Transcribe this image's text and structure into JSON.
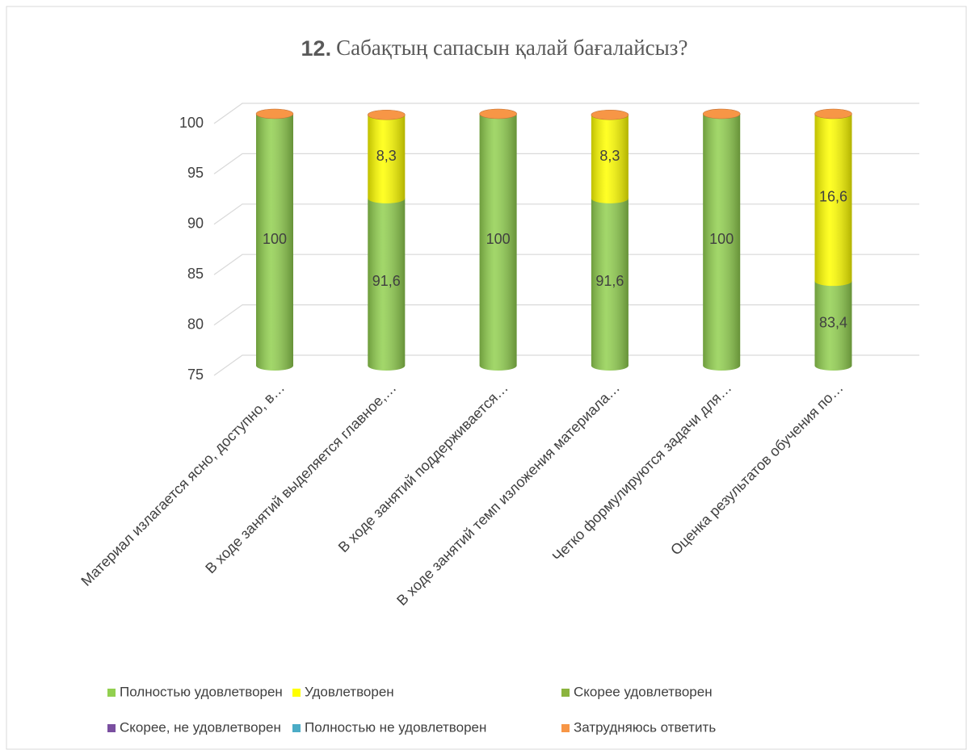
{
  "chart_data": {
    "type": "bar3d_stacked",
    "title_number": "12.",
    "title": "Сабақтың сапасын қалай бағалайсыз?",
    "categories": [
      "Материал излагается ясно, доступно, в…",
      "В ходе занятий выделяется главное,…",
      "В ходе занятий поддерживается…",
      "В ходе занятий темп изложения материала…",
      "Четко формулируются задачи для…",
      "Оценка результатов обучения по…"
    ],
    "series": [
      {
        "name": "Полностью удовлетворен",
        "color": "#92d050",
        "values": [
          100,
          91.6,
          100,
          91.6,
          100,
          83.4
        ],
        "value_labels": [
          "100",
          "91,6",
          "100",
          "91,6",
          "100",
          "83,4"
        ]
      },
      {
        "name": "Удовлетворен",
        "color": "#ffff00",
        "values": [
          null,
          8.3,
          null,
          8.3,
          null,
          16.6
        ],
        "value_labels": [
          null,
          "8,3",
          null,
          "8,3",
          null,
          "16,6"
        ]
      },
      {
        "name": "Скорее удовлетворен",
        "color": "#8bb43e",
        "values": [
          null,
          null,
          null,
          null,
          null,
          null
        ]
      },
      {
        "name": "Скорее, не удовлетворен",
        "color": "#7a4fa0",
        "values": [
          null,
          null,
          null,
          null,
          null,
          null
        ]
      },
      {
        "name": "Полностью не удовлетворен",
        "color": "#4bacc6",
        "values": [
          null,
          null,
          null,
          null,
          null,
          null
        ]
      },
      {
        "name": "Затрудняюсь ответить",
        "color": "#f79646",
        "values": [
          0,
          0,
          0,
          0,
          0,
          0
        ]
      }
    ],
    "ylim": [
      75,
      100
    ],
    "yticks": [
      75,
      80,
      85,
      90,
      95,
      100
    ],
    "grid": true,
    "legend": "bottom"
  }
}
